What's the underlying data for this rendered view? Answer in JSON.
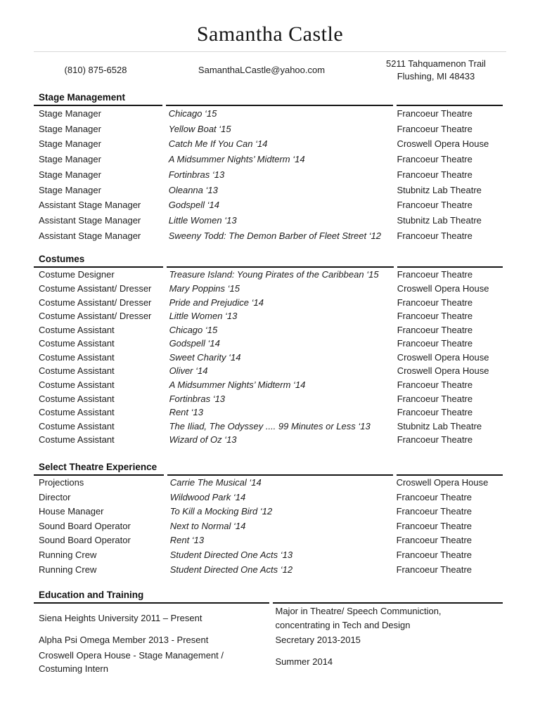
{
  "header": {
    "name": "Samantha Castle",
    "phone": "(810) 875-6528",
    "email": "SamanthaLCastle@yahoo.com",
    "address_line1": "5211 Tahquamenon Trail",
    "address_line2": "Flushing, MI 48433"
  },
  "sections": {
    "stage_management": {
      "title": "Stage Management",
      "rows": [
        {
          "role": "Stage Manager",
          "production": "Chicago ‘15",
          "venue": "Francoeur Theatre"
        },
        {
          "role": "Stage Manager",
          "production": "Yellow Boat ‘15",
          "venue": "Francoeur Theatre"
        },
        {
          "role": "Stage Manager",
          "production": "Catch Me If You Can ‘14",
          "venue": "Croswell Opera House"
        },
        {
          "role": "Stage Manager",
          "production": "A Midsummer Nights’ Midterm ‘14",
          "venue": "Francoeur Theatre"
        },
        {
          "role": "Stage Manager",
          "production": "Fortinbras ‘13",
          "venue": "Francoeur Theatre"
        },
        {
          "role": "Stage Manager",
          "production": "Oleanna ‘13",
          "venue": "Stubnitz Lab Theatre"
        },
        {
          "role": "Assistant Stage Manager",
          "production": "Godspell ‘14",
          "venue": "Francoeur Theatre"
        },
        {
          "role": "Assistant Stage Manager",
          "production": "Little Women ‘13",
          "venue": "Stubnitz Lab Theatre"
        },
        {
          "role": "Assistant Stage Manager",
          "production": "Sweeny Todd: The Demon Barber of Fleet Street ‘12",
          "venue": "Francoeur Theatre"
        }
      ]
    },
    "costumes": {
      "title": "Costumes",
      "rows": [
        {
          "role": "Costume Designer",
          "production": "Treasure Island: Young Pirates of the Caribbean ‘15",
          "venue": "Francoeur Theatre"
        },
        {
          "role": "Costume Assistant/ Dresser",
          "production": "Mary Poppins ‘15",
          "venue": "Croswell Opera House"
        },
        {
          "role": "Costume Assistant/ Dresser",
          "production": "Pride and Prejudice ‘14",
          "venue": "Francoeur Theatre"
        },
        {
          "role": "Costume Assistant/ Dresser",
          "production": "Little Women ‘13",
          "venue": "Francoeur Theatre"
        },
        {
          "role": "Costume Assistant",
          "production": "Chicago ‘15",
          "venue": "Francoeur Theatre"
        },
        {
          "role": "Costume Assistant",
          "production": "Godspell ‘14",
          "venue": "Francoeur Theatre"
        },
        {
          "role": "Costume Assistant",
          "production": "Sweet Charity ‘14",
          "venue": "Croswell Opera House"
        },
        {
          "role": "Costume Assistant",
          "production": "Oliver ‘14",
          "venue": "Croswell Opera House"
        },
        {
          "role": "Costume Assistant",
          "production": "A Midsummer Nights’ Midterm ‘14",
          "venue": "Francoeur Theatre"
        },
        {
          "role": "Costume Assistant",
          "production": "Fortinbras ‘13",
          "venue": "Francoeur Theatre"
        },
        {
          "role": "Costume Assistant",
          "production": "Rent ‘13",
          "venue": "Francoeur Theatre"
        },
        {
          "role": "Costume Assistant",
          "production": "The Iliad, The Odyssey .... 99 Minutes or Less ‘13",
          "venue": "Stubnitz Lab Theatre"
        },
        {
          "role": "Costume Assistant",
          "production": "Wizard of Oz ‘13",
          "venue": "Francoeur Theatre"
        }
      ]
    },
    "select_theatre": {
      "title": "Select Theatre Experience",
      "rows": [
        {
          "role": "Projections",
          "production": "Carrie The Musical ‘14",
          "venue": "Croswell Opera House"
        },
        {
          "role": "Director",
          "production": "Wildwood Park ‘14",
          "venue": "Francoeur Theatre"
        },
        {
          "role": "House Manager",
          "production": "To Kill a Mocking Bird ‘12",
          "venue": "Francoeur Theatre"
        },
        {
          "role": "Sound Board Operator",
          "production": "Next to Normal ‘14",
          "venue": "Francoeur Theatre"
        },
        {
          "role": "Sound Board Operator",
          "production": "Rent ‘13",
          "venue": "Francoeur Theatre"
        },
        {
          "role": "Running Crew",
          "production": "Student Directed One Acts ‘13",
          "venue": "Francoeur Theatre"
        },
        {
          "role": "Running Crew",
          "production": "Student Directed One Acts ‘12",
          "venue": "Francoeur Theatre"
        }
      ]
    },
    "education": {
      "title": "Education and Training",
      "rows": [
        {
          "left": "Siena Heights University 2011 – Present",
          "right": "Major in Theatre/ Speech Communiction, concentrating in Tech and Design"
        },
        {
          "left": "Alpha Psi Omega Member 2013 - Present",
          "right": "Secretary 2013-2015"
        },
        {
          "left": "Croswell Opera House - Stage Management / Costuming Intern",
          "right": "Summer 2014"
        }
      ]
    }
  }
}
